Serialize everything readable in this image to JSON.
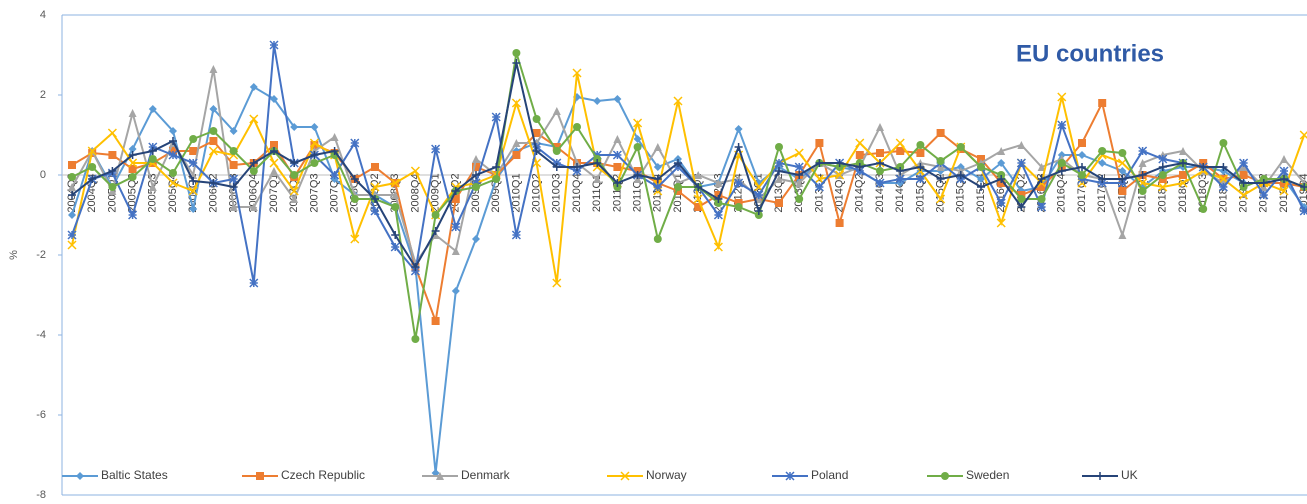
{
  "chart_data": {
    "type": "line",
    "title": "EU countries",
    "y_label": "%",
    "categories": [
      "2004Q3",
      "2004Q4",
      "2005Q1",
      "2005Q2",
      "2005Q3",
      "2005Q4",
      "2006Q1",
      "2006Q2",
      "2006Q3",
      "2006Q4",
      "2007Q1",
      "2007Q2",
      "2007Q3",
      "2007Q4",
      "2008Q1",
      "2008Q2",
      "2008Q3",
      "2008Q4",
      "2009Q1",
      "2009Q2",
      "2009Q3",
      "2009Q4",
      "2010Q1",
      "2010Q2",
      "2010Q3",
      "2010Q4",
      "2011Q1",
      "2011Q2",
      "2011Q3",
      "2011Q4",
      "2012Q1",
      "2012Q2",
      "2012Q3",
      "2012Q4",
      "2013Q1",
      "2013Q2",
      "2013Q3",
      "2013Q4",
      "2014Q1",
      "2014Q2",
      "2014Q3",
      "2014Q4",
      "2015Q1",
      "2015Q2",
      "2015Q3",
      "2015Q4",
      "2016Q1",
      "2016Q2",
      "2016Q3",
      "2016Q4",
      "2017Q1",
      "2017Q2",
      "2017Q3",
      "2017Q4",
      "2018Q1",
      "2018Q2",
      "2018Q3",
      "2018Q4",
      "2019Q1",
      "2019Q2",
      "2019Q3",
      "2019Q4"
    ],
    "series": [
      {
        "name": "Baltic States",
        "color": "#5b9bd5",
        "marker": "diamond",
        "values": [
          -1.0,
          0.6,
          -0.3,
          0.65,
          1.65,
          1.1,
          -0.85,
          1.65,
          1.1,
          2.2,
          1.9,
          1.2,
          1.2,
          -0.1,
          -0.5,
          -0.5,
          -0.8,
          -2.3,
          -7.45,
          -2.9,
          -1.6,
          -0.1,
          0.6,
          0.8,
          0.7,
          1.95,
          1.85,
          1.9,
          0.9,
          0.2,
          0.4,
          -0.3,
          -0.2,
          1.15,
          -0.2,
          0.2,
          -0.1,
          0.3,
          0.2,
          0.1,
          -0.2,
          -0.2,
          0.1,
          0.1,
          0.2,
          -0.1,
          0.3,
          -0.4,
          -0.3,
          0.5,
          0.5,
          0.3,
          0.1,
          -0.3,
          0.1,
          0.2,
          0.2,
          0.1,
          -0.2,
          -0.2,
          -0.1,
          -0.8
        ]
      },
      {
        "name": "Czech Republic",
        "color": "#ed7d31",
        "marker": "square",
        "values": [
          0.25,
          0.55,
          0.5,
          0.15,
          0.3,
          0.6,
          0.6,
          0.85,
          0.25,
          0.3,
          0.75,
          -0.05,
          0.75,
          0.55,
          -0.1,
          0.2,
          -0.2,
          -2.3,
          -3.65,
          -0.6,
          0.2,
          0.0,
          0.5,
          1.05,
          0.7,
          0.3,
          0.3,
          0.2,
          0.1,
          -0.2,
          -0.4,
          -0.8,
          -0.5,
          -0.7,
          -0.6,
          -0.7,
          0.0,
          0.8,
          -1.2,
          0.5,
          0.55,
          0.6,
          0.55,
          1.05,
          0.65,
          0.4,
          -0.2,
          -0.5,
          -0.3,
          0.2,
          0.8,
          1.8,
          -0.4,
          0.0,
          -0.1,
          0.0,
          0.3,
          -0.1,
          0.0,
          -0.2,
          -0.2,
          -0.3
        ]
      },
      {
        "name": "Denmark",
        "color": "#a5a5a5",
        "marker": "triangle",
        "values": [
          -0.3,
          0.6,
          -0.4,
          1.55,
          -0.3,
          0.8,
          0.0,
          2.65,
          -0.8,
          -0.8,
          0.1,
          -0.6,
          0.6,
          0.95,
          -0.5,
          -0.5,
          -0.5,
          -2.2,
          -1.5,
          -1.9,
          0.4,
          0.0,
          0.8,
          0.8,
          1.6,
          0.3,
          -0.1,
          0.9,
          -0.1,
          0.7,
          -0.2,
          0.0,
          -0.2,
          -0.1,
          -0.6,
          -0.1,
          -0.2,
          0.3,
          0.0,
          0.2,
          1.2,
          0.0,
          0.3,
          0.2,
          0.1,
          0.3,
          0.6,
          0.75,
          0.2,
          0.4,
          0.0,
          -0.1,
          -1.5,
          0.3,
          0.5,
          0.6,
          0.1,
          -0.2,
          0.2,
          -0.3,
          0.4,
          -0.2
        ]
      },
      {
        "name": "Norway",
        "color": "#ffc000",
        "marker": "x",
        "values": [
          -1.75,
          0.6,
          1.05,
          0.3,
          0.3,
          -0.2,
          -0.4,
          0.6,
          0.5,
          1.4,
          0.3,
          -0.4,
          0.8,
          0.5,
          -1.6,
          -0.3,
          -0.2,
          0.1,
          -1.0,
          -0.3,
          -0.2,
          0.0,
          1.8,
          0.3,
          -2.7,
          2.55,
          0.2,
          -0.2,
          1.3,
          -0.4,
          1.85,
          -0.6,
          -1.8,
          0.5,
          -0.3,
          0.3,
          0.55,
          -0.1,
          0.0,
          0.8,
          0.3,
          0.8,
          0.1,
          -0.6,
          0.7,
          0.2,
          -1.2,
          0.3,
          -0.2,
          1.95,
          -0.2,
          0.5,
          0.3,
          -0.2,
          -0.3,
          -0.2,
          0.1,
          -0.1,
          -0.5,
          -0.2,
          -0.4,
          1.0
        ]
      },
      {
        "name": "Poland",
        "color": "#4472c4",
        "marker": "star",
        "values": [
          -1.5,
          -0.1,
          0.05,
          -1.0,
          0.7,
          0.5,
          0.3,
          -0.2,
          -0.1,
          -2.7,
          3.25,
          0.3,
          0.5,
          0.0,
          0.8,
          -0.9,
          -1.8,
          -2.4,
          0.65,
          -1.3,
          -0.2,
          1.45,
          -1.5,
          0.7,
          0.3,
          0.1,
          0.5,
          0.5,
          0.0,
          -0.3,
          0.2,
          -0.3,
          -1.0,
          -0.2,
          -0.5,
          0.3,
          0.2,
          -0.3,
          0.3,
          0.1,
          -0.2,
          -0.1,
          -0.1,
          0.3,
          -0.1,
          0.2,
          -0.7,
          0.3,
          -0.8,
          1.25,
          -0.1,
          -0.2,
          -0.2,
          0.6,
          0.4,
          0.3,
          0.2,
          -0.3,
          0.3,
          -0.5,
          0.1,
          -0.9
        ]
      },
      {
        "name": "Sweden",
        "color": "#70ad47",
        "marker": "circle",
        "values": [
          -0.05,
          0.2,
          -0.3,
          -0.05,
          0.4,
          0.05,
          0.9,
          1.1,
          0.6,
          0.1,
          0.6,
          0.0,
          0.3,
          0.5,
          -0.6,
          -0.6,
          -0.8,
          -4.1,
          -1.0,
          -0.4,
          -0.3,
          -0.1,
          3.05,
          1.4,
          0.6,
          1.2,
          0.4,
          -0.3,
          0.7,
          -1.6,
          -0.3,
          -0.3,
          -0.7,
          -0.8,
          -1.0,
          0.7,
          -0.6,
          0.3,
          0.2,
          0.3,
          0.1,
          0.2,
          0.75,
          0.35,
          0.7,
          0.2,
          0.0,
          -0.6,
          -0.6,
          0.3,
          0.0,
          0.6,
          0.55,
          -0.4,
          0.0,
          0.3,
          -0.85,
          0.8,
          -0.3,
          -0.1,
          -0.1,
          -0.3
        ]
      },
      {
        "name": "UK",
        "color": "#264478",
        "marker": "plus",
        "values": [
          -0.5,
          -0.1,
          0.1,
          0.5,
          0.6,
          0.85,
          -0.15,
          -0.2,
          -0.3,
          0.3,
          0.6,
          0.3,
          0.5,
          0.6,
          -0.1,
          -0.6,
          -1.5,
          -2.3,
          -1.4,
          -0.4,
          0.0,
          0.2,
          2.8,
          0.6,
          0.2,
          0.2,
          0.3,
          -0.2,
          0.0,
          -0.1,
          0.3,
          -0.3,
          -0.6,
          0.7,
          -0.9,
          0.1,
          0.0,
          0.3,
          0.3,
          0.2,
          0.3,
          0.1,
          0.2,
          -0.1,
          0.0,
          -0.3,
          -0.1,
          -0.8,
          -0.1,
          0.1,
          0.2,
          -0.1,
          -0.1,
          0.0,
          0.2,
          0.3,
          0.2,
          0.2,
          -0.2,
          -0.2,
          -0.1,
          -0.3
        ]
      }
    ],
    "ylim": [
      -8,
      4
    ],
    "yticks": [
      -8,
      -6,
      -4,
      -2,
      0,
      2,
      4
    ],
    "legend": "bottom",
    "frame_color": "#8db3e2"
  }
}
